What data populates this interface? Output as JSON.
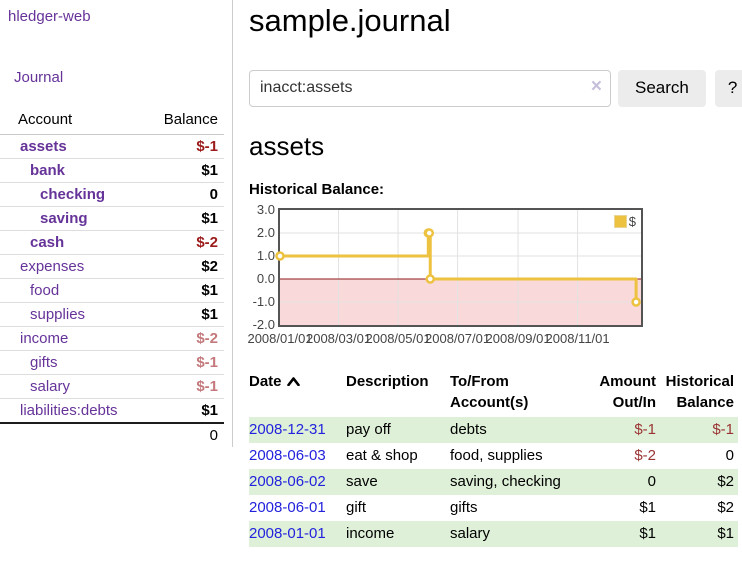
{
  "sidebar": {
    "brand": "hledger-web",
    "nav_journal": "Journal",
    "accounts_table": {
      "headers": {
        "account": "Account",
        "balance": "Balance"
      },
      "rows": [
        {
          "name": "assets",
          "balance": "$-1"
        },
        {
          "name": "bank",
          "balance": "$1"
        },
        {
          "name": "checking",
          "balance": "0"
        },
        {
          "name": "saving",
          "balance": "$1"
        },
        {
          "name": "cash",
          "balance": "$-2"
        },
        {
          "name": "expenses",
          "balance": "$2"
        },
        {
          "name": "food",
          "balance": "$1"
        },
        {
          "name": "supplies",
          "balance": "$1"
        },
        {
          "name": "income",
          "balance": "$-2"
        },
        {
          "name": "gifts",
          "balance": "$-1"
        },
        {
          "name": "salary",
          "balance": "$-1"
        },
        {
          "name": "liabilities:debts",
          "balance": "$1"
        }
      ],
      "total": "0"
    }
  },
  "header": {
    "title": "sample.journal"
  },
  "search": {
    "query": "inacct:assets",
    "clear_icon": "×",
    "button_label": "Search",
    "help_label": "?"
  },
  "main": {
    "account_heading": "assets",
    "chart_label": "Historical Balance:"
  },
  "chart_data": {
    "type": "line",
    "title": "Historical Balance:",
    "step": true,
    "series": [
      {
        "name": "$",
        "points": [
          [
            "2008-01-01",
            1
          ],
          [
            "2008-06-01",
            2
          ],
          [
            "2008-06-02",
            2
          ],
          [
            "2008-06-03",
            0
          ],
          [
            "2008-12-31",
            -1
          ]
        ]
      }
    ],
    "ylim": [
      -2,
      3
    ],
    "x_range": [
      "2008-01-01",
      "2009-01-05"
    ],
    "y_ticks": [
      {
        "v": 3,
        "label": "3.0"
      },
      {
        "v": 2,
        "label": "2.0"
      },
      {
        "v": 1,
        "label": "1.0"
      },
      {
        "v": 0,
        "label": "0.0"
      },
      {
        "v": -1,
        "label": "-1.0"
      },
      {
        "v": -2,
        "label": "-2.0"
      }
    ],
    "x_ticks": [
      {
        "d": "2008-01-01",
        "label": "2008/01/01"
      },
      {
        "d": "2008-03-01",
        "label": "2008/03/01"
      },
      {
        "d": "2008-05-01",
        "label": "2008/05/01"
      },
      {
        "d": "2008-07-01",
        "label": "2008/07/01"
      },
      {
        "d": "2008-09-01",
        "label": "2008/09/01"
      },
      {
        "d": "2008-11-01",
        "label": "2008/11/01"
      }
    ],
    "legend": {
      "label": "$",
      "position": "top-right"
    },
    "colors": {
      "line": "#edc240",
      "marker_fill": "#ffffff",
      "negative_region": "#f9d9d9",
      "zero_line": "#8b1a1a",
      "grid": "#e2e2e2",
      "border": "#545454"
    },
    "grid": true
  },
  "register": {
    "headers": {
      "date": "Date",
      "description": "Description",
      "accounts": "To/From Account(s)",
      "amount": "Amount Out/In",
      "balance": "Historical Balance"
    },
    "rows": [
      {
        "date": "2008-12-31",
        "description": "pay off",
        "accounts": "debts",
        "amount": "$-1",
        "balance": "$-1"
      },
      {
        "date": "2008-06-03",
        "description": "eat & shop",
        "accounts": "food, supplies",
        "amount": "$-2",
        "balance": "0"
      },
      {
        "date": "2008-06-02",
        "description": "save",
        "accounts": "saving, checking",
        "amount": "0",
        "balance": "$2"
      },
      {
        "date": "2008-06-01",
        "description": "gift",
        "accounts": "gifts",
        "amount": "$1",
        "balance": "$2"
      },
      {
        "date": "2008-01-01",
        "description": "income",
        "accounts": "salary",
        "amount": "$1",
        "balance": "$1"
      }
    ]
  },
  "colors": {
    "link_purple": "#663399",
    "link_blue": "#2222dd",
    "negative_strong": "#9b1b1b",
    "negative_soft": "#c47a7c",
    "negative_table": "#9a3434",
    "row_stripe_green": "#dff0d8",
    "button_bg": "#ececec"
  }
}
